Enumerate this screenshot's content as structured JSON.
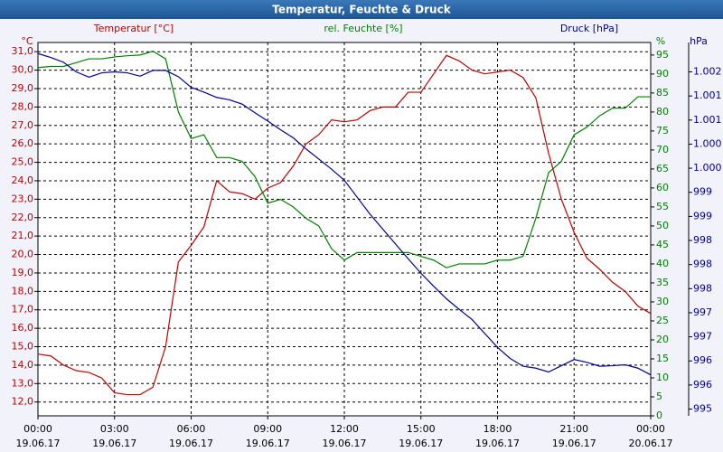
{
  "chart_data": {
    "type": "line",
    "title": "Temperatur, Feuchte & Druck",
    "y_label": "°C",
    "y2_label": "%",
    "y3_label": "hPa",
    "grid": true,
    "x": [
      0,
      0.5,
      1,
      1.5,
      2,
      2.5,
      3,
      3.5,
      4,
      4.5,
      5,
      5.5,
      6,
      6.5,
      7,
      7.5,
      8,
      8.5,
      9,
      9.5,
      10,
      10.5,
      11,
      11.5,
      12,
      12.5,
      13,
      13.5,
      14,
      14.5,
      15,
      15.5,
      16,
      16.5,
      17,
      17.5,
      18,
      18.5,
      19,
      19.5,
      20,
      20.5,
      21,
      21.5,
      22,
      22.5,
      23,
      23.5,
      24
    ],
    "xlim": [
      0,
      24
    ],
    "xticks": [
      {
        "value": 0,
        "label": "00:00"
      },
      {
        "value": 3,
        "label": "03:00"
      },
      {
        "value": 6,
        "label": "06:00"
      },
      {
        "value": 9,
        "label": "09:00"
      },
      {
        "value": 12,
        "label": "12:00"
      },
      {
        "value": 15,
        "label": "15:00"
      },
      {
        "value": 18,
        "label": "18:00"
      },
      {
        "value": 21,
        "label": "21:00"
      },
      {
        "value": 24,
        "label": "00:00"
      }
    ],
    "xtick_dates": [
      "19.06.17",
      "19.06.17",
      "19.06.17",
      "19.06.17",
      "19.06.17",
      "19.06.17",
      "19.06.17",
      "19.06.17",
      "20.06.17"
    ],
    "ylim": [
      11.25,
      31.5
    ],
    "yticks": [
      {
        "value": 12,
        "label": "12,0"
      },
      {
        "value": 13,
        "label": "13,0"
      },
      {
        "value": 14,
        "label": "14,0"
      },
      {
        "value": 15,
        "label": "15,0"
      },
      {
        "value": 16,
        "label": "16,0"
      },
      {
        "value": 17,
        "label": "17,0"
      },
      {
        "value": 18,
        "label": "18,0"
      },
      {
        "value": 19,
        "label": "19,0"
      },
      {
        "value": 20,
        "label": "20,0"
      },
      {
        "value": 21,
        "label": "21,0"
      },
      {
        "value": 22,
        "label": "22,0"
      },
      {
        "value": 23,
        "label": "23,0"
      },
      {
        "value": 24,
        "label": "24,0"
      },
      {
        "value": 25,
        "label": "25,0"
      },
      {
        "value": 26,
        "label": "26,0"
      },
      {
        "value": 27,
        "label": "27,0"
      },
      {
        "value": 28,
        "label": "28,0"
      },
      {
        "value": 29,
        "label": "29,0"
      },
      {
        "value": 30,
        "label": "30,0"
      },
      {
        "value": 31,
        "label": "31,0"
      }
    ],
    "y2lim": [
      0,
      98.3
    ],
    "y2ticks": [
      0,
      5,
      10,
      15,
      20,
      25,
      30,
      35,
      40,
      45,
      50,
      55,
      60,
      65,
      70,
      75,
      80,
      85,
      90,
      95
    ],
    "y3lim": [
      994.86,
      1002.61
    ],
    "y3ticks": [
      {
        "value": 995,
        "label": "995"
      },
      {
        "value": 995.5,
        "label": "996"
      },
      {
        "value": 996,
        "label": "996"
      },
      {
        "value": 996.5,
        "label": "997"
      },
      {
        "value": 997,
        "label": "997"
      },
      {
        "value": 997.5,
        "label": "998"
      },
      {
        "value": 998,
        "label": "998"
      },
      {
        "value": 998.5,
        "label": "998"
      },
      {
        "value": 999,
        "label": "999"
      },
      {
        "value": 999.5,
        "label": "999"
      },
      {
        "value": 1000,
        "label": "1.000"
      },
      {
        "value": 1000.5,
        "label": "1.000"
      },
      {
        "value": 1001,
        "label": "1.001"
      },
      {
        "value": 1001.5,
        "label": "1.001"
      },
      {
        "value": 1002,
        "label": "1.002"
      }
    ],
    "series": [
      {
        "name": "Temperatur [°C]",
        "color": "#c00000",
        "axis": "y",
        "values": [
          14.6,
          14.5,
          14.0,
          13.7,
          13.6,
          13.3,
          12.5,
          12.4,
          12.4,
          12.8,
          15.0,
          19.6,
          20.5,
          21.5,
          24.0,
          23.4,
          23.3,
          23.0,
          23.6,
          23.9,
          24.8,
          26.0,
          26.5,
          27.3,
          27.2,
          27.3,
          27.8,
          28.0,
          28.0,
          28.8,
          28.8,
          29.8,
          30.8,
          30.5,
          30.0,
          29.8,
          29.9,
          30.0,
          29.6,
          28.5,
          25.5,
          23.0,
          21.2,
          19.8,
          19.2,
          18.5,
          18.0,
          17.2,
          16.8
        ]
      },
      {
        "name": "rel. Feuchte [%]",
        "color": "#008000",
        "axis": "y2",
        "values": [
          91.7,
          92,
          92,
          93,
          94,
          94,
          94.5,
          94.8,
          95,
          96,
          94,
          80,
          73,
          74,
          68,
          68,
          67,
          63,
          56,
          57,
          55,
          52,
          50,
          44,
          41,
          43,
          43,
          43,
          43,
          43,
          42,
          41,
          39,
          40,
          40,
          40,
          41,
          41,
          42,
          52,
          64,
          67,
          74,
          76,
          79,
          81,
          81,
          84,
          84
        ]
      },
      {
        "name": "Druck [hPa]",
        "color": "#000099",
        "axis": "y3",
        "values": [
          1002.38,
          1002.3,
          1002.2,
          1002.0,
          1001.89,
          1001.98,
          1002.0,
          1001.98,
          1001.91,
          1002.03,
          1002.03,
          1001.9,
          1001.68,
          1001.58,
          1001.47,
          1001.42,
          1001.33,
          1001.15,
          1000.98,
          1000.8,
          1000.63,
          1000.4,
          1000.19,
          999.98,
          999.75,
          999.4,
          999.05,
          998.74,
          998.43,
          998.12,
          997.82,
          997.55,
          997.29,
          997.07,
          996.86,
          996.57,
          996.28,
          996.05,
          995.89,
          995.85,
          995.77,
          995.9,
          996.03,
          995.97,
          995.89,
          995.9,
          995.92,
          995.85,
          995.71
        ]
      }
    ]
  }
}
